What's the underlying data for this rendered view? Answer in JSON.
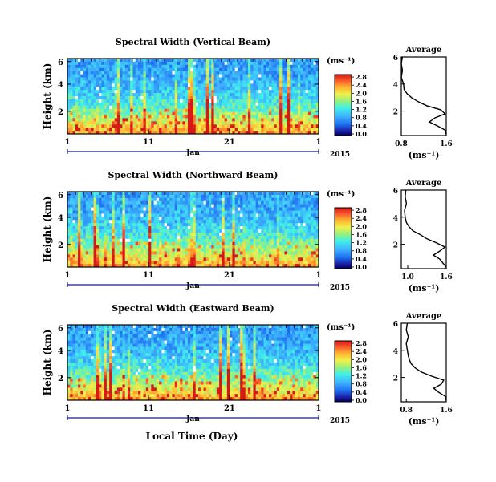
{
  "footer_label": "Local Time (Day)",
  "chart_data": [
    {
      "type": "heatmap",
      "title": "Spectral Width (Vertical Beam)",
      "ylabel": "Height (km)",
      "yticks": [
        "6",
        "4",
        "2"
      ],
      "xticks": [
        "1",
        "11",
        "21",
        "1"
      ],
      "month_label": "Jan",
      "year_label": "2015",
      "colorbar": {
        "unit": "(ms⁻¹)",
        "ticks": [
          "2.8",
          "2.4",
          "2.0",
          "1.6",
          "1.2",
          "0.8",
          "0.4",
          "0.0"
        ],
        "range": [
          0,
          3.0
        ]
      },
      "average": {
        "title": "Average",
        "xlabel": "(ms⁻¹)",
        "xticks": [
          "0.8",
          "1.6"
        ],
        "yticks": [
          "6",
          "4",
          "2"
        ],
        "xlim": [
          0.8,
          1.6
        ],
        "ylim": [
          0.2,
          6
        ],
        "height_km": [
          0.3,
          0.6,
          0.9,
          1.2,
          1.5,
          1.8,
          2.1,
          2.4,
          2.7,
          3.0,
          3.3,
          3.6,
          4.0,
          4.5,
          5.0,
          5.5,
          6.0
        ],
        "width": [
          1.6,
          1.58,
          1.45,
          1.3,
          1.4,
          1.58,
          1.5,
          1.25,
          1.1,
          0.98,
          0.9,
          0.85,
          0.84,
          0.8,
          0.82,
          0.8,
          0.82
        ]
      }
    },
    {
      "type": "heatmap",
      "title": "Spectral Width (Northward Beam)",
      "ylabel": "Height (km)",
      "yticks": [
        "6",
        "4",
        "2"
      ],
      "xticks": [
        "1",
        "11",
        "21",
        "1"
      ],
      "month_label": "Jan",
      "year_label": "2015",
      "colorbar": {
        "unit": "(ms⁻¹)",
        "ticks": [
          "2.8",
          "2.4",
          "2.0",
          "1.6",
          "1.2",
          "0.8",
          "0.4",
          "0.0"
        ],
        "range": [
          0,
          3.0
        ]
      },
      "average": {
        "title": "Average",
        "xlabel": "(ms⁻¹)",
        "xticks": [
          "1.0",
          "1.6"
        ],
        "yticks": [
          "6",
          "4",
          "2"
        ],
        "xlim": [
          0.9,
          1.6
        ],
        "ylim": [
          0.2,
          6
        ],
        "height_km": [
          0.3,
          0.6,
          0.9,
          1.2,
          1.5,
          1.8,
          2.1,
          2.4,
          2.7,
          3.0,
          3.3,
          3.6,
          4.0,
          4.5,
          5.0,
          5.5,
          6.0
        ],
        "width": [
          1.6,
          1.55,
          1.5,
          1.4,
          1.5,
          1.58,
          1.45,
          1.3,
          1.2,
          1.08,
          1.02,
          0.98,
          0.96,
          0.95,
          0.98,
          0.96,
          0.97
        ]
      }
    },
    {
      "type": "heatmap",
      "title": "Spectral Width (Eastward Beam)",
      "ylabel": "Height (km)",
      "yticks": [
        "6",
        "4",
        "2"
      ],
      "xticks": [
        "1",
        "11",
        "21",
        "1"
      ],
      "month_label": "Jan",
      "year_label": "2015",
      "colorbar": {
        "unit": "(ms⁻¹)",
        "ticks": [
          "2.8",
          "2.4",
          "2.0",
          "1.6",
          "1.2",
          "0.8",
          "0.4",
          "0.0"
        ],
        "range": [
          0,
          3.0
        ]
      },
      "average": {
        "title": "Average",
        "xlabel": "(ms⁻¹)",
        "xticks": [
          "0.8",
          "1.6"
        ],
        "yticks": [
          "6",
          "4",
          "2"
        ],
        "xlim": [
          0.7,
          1.6
        ],
        "ylim": [
          0.2,
          6
        ],
        "height_km": [
          0.3,
          0.6,
          0.9,
          1.2,
          1.5,
          1.8,
          2.1,
          2.4,
          2.7,
          3.0,
          3.3,
          3.6,
          4.0,
          4.5,
          5.0,
          5.5,
          6.0
        ],
        "width": [
          1.6,
          1.58,
          1.45,
          1.35,
          1.5,
          1.55,
          1.3,
          1.1,
          0.98,
          0.9,
          0.86,
          0.84,
          0.82,
          0.8,
          0.84,
          0.8,
          0.82
        ]
      }
    }
  ]
}
